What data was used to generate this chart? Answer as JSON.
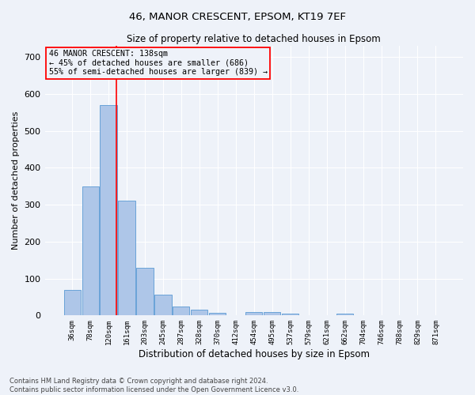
{
  "title1": "46, MANOR CRESCENT, EPSOM, KT19 7EF",
  "title2": "Size of property relative to detached houses in Epsom",
  "xlabel": "Distribution of detached houses by size in Epsom",
  "ylabel": "Number of detached properties",
  "footnote": "Contains HM Land Registry data © Crown copyright and database right 2024.\nContains public sector information licensed under the Open Government Licence v3.0.",
  "bin_labels": [
    "36sqm",
    "78sqm",
    "120sqm",
    "161sqm",
    "203sqm",
    "245sqm",
    "287sqm",
    "328sqm",
    "370sqm",
    "412sqm",
    "454sqm",
    "495sqm",
    "537sqm",
    "579sqm",
    "621sqm",
    "662sqm",
    "704sqm",
    "746sqm",
    "788sqm",
    "829sqm",
    "871sqm"
  ],
  "bar_heights": [
    70,
    350,
    570,
    310,
    128,
    57,
    25,
    15,
    8,
    0,
    10,
    10,
    5,
    0,
    0,
    5,
    0,
    0,
    0,
    0,
    0
  ],
  "bar_color": "#aec6e8",
  "bar_edge_color": "#5a9ad4",
  "ylim": [
    0,
    730
  ],
  "yticks": [
    0,
    100,
    200,
    300,
    400,
    500,
    600,
    700
  ],
  "red_line_x": 2.45,
  "annotation_text": "46 MANOR CRESCENT: 138sqm\n← 45% of detached houses are smaller (686)\n55% of semi-detached houses are larger (839) →",
  "background_color": "#eef2f9",
  "grid_color": "#ffffff"
}
